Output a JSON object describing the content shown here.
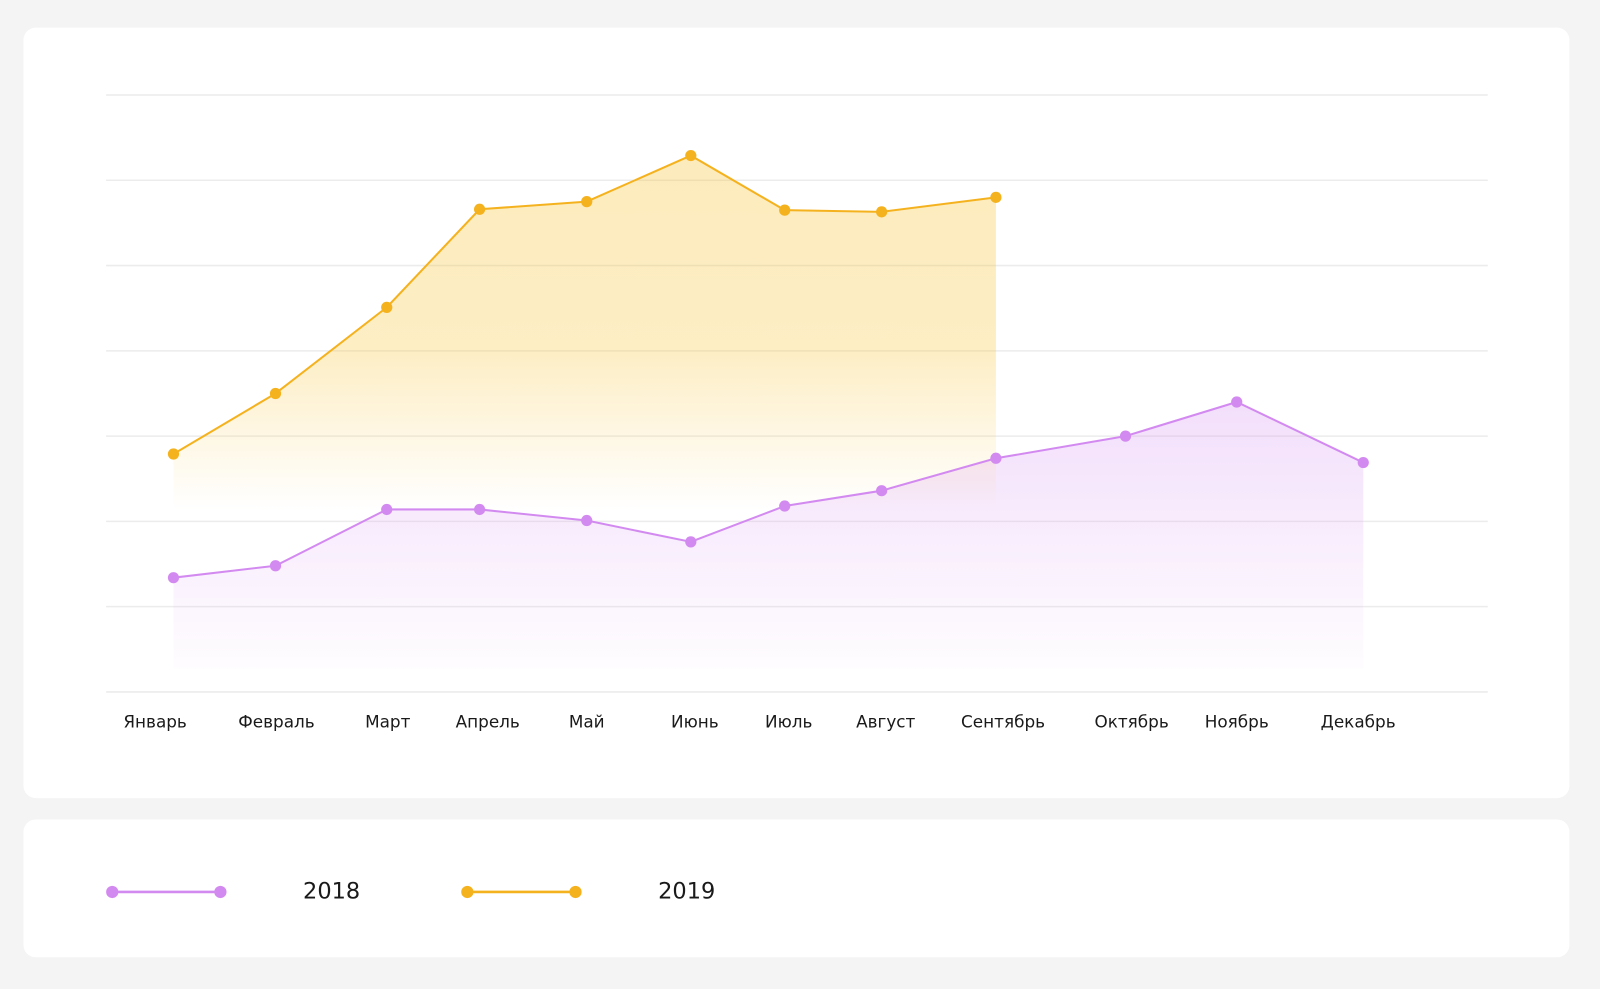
{
  "chart_data": {
    "type": "line",
    "categories": [
      "Январь",
      "Февраль",
      "Март",
      "Апрель",
      "Май",
      "Июнь",
      "Июль",
      "Август",
      "Сентябрь",
      "Октябрь",
      "Ноябрь",
      "Декабрь"
    ],
    "series": [
      {
        "name": "2018",
        "color": "#d38af0",
        "values": [
          1.34,
          1.48,
          2.14,
          2.14,
          2.01,
          1.76,
          2.18,
          2.36,
          2.74,
          3.0,
          3.4,
          2.69
        ]
      },
      {
        "name": "2019",
        "color": "#f5b21f",
        "values": [
          2.79,
          3.5,
          4.51,
          5.66,
          5.75,
          6.29,
          5.65,
          5.63,
          5.8,
          null,
          null,
          null
        ]
      }
    ],
    "ylim": [
      0,
      7
    ],
    "yticks": [
      0,
      1,
      2,
      3,
      4,
      5,
      6,
      7
    ],
    "grid": true
  }
}
